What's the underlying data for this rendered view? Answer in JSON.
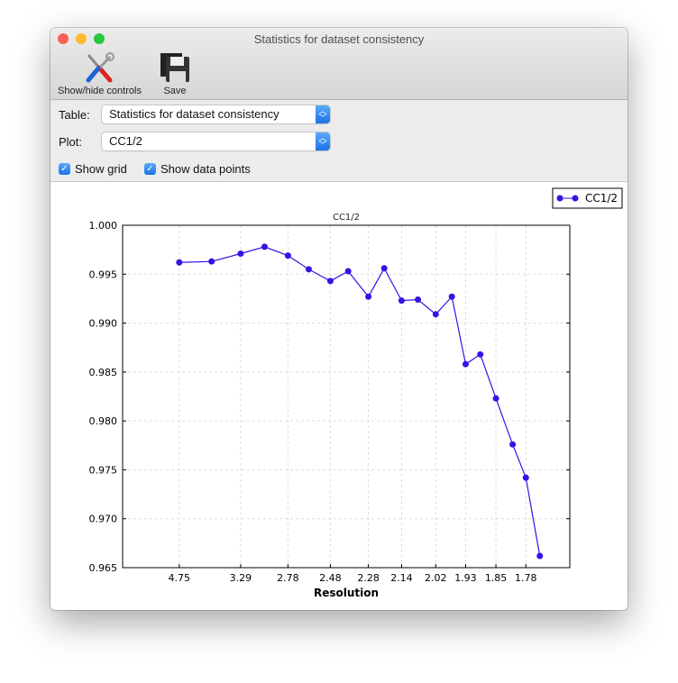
{
  "window": {
    "title": "Statistics for dataset consistency"
  },
  "toolbar": {
    "show_hide_label": "Show/hide controls",
    "save_label": "Save"
  },
  "controls": {
    "table_label": "Table:",
    "table_value": "Statistics for dataset consistency",
    "plot_label": "Plot:",
    "plot_value": "CC1/2",
    "show_grid_label": "Show grid",
    "show_grid": true,
    "show_points_label": "Show data points",
    "show_points": true
  },
  "chart_data": {
    "type": "line",
    "title": "CC1/2",
    "xlabel": "Resolution",
    "ylabel": "",
    "x_scale": "reciprocal-square (1/d^2)",
    "x_ticks": [
      "4.75",
      "3.29",
      "2.78",
      "2.48",
      "2.28",
      "2.14",
      "2.02",
      "1.93",
      "1.85",
      "1.78"
    ],
    "ylim": [
      0.965,
      1.0
    ],
    "y_ticks": [
      "0.965",
      "0.970",
      "0.975",
      "0.980",
      "0.985",
      "0.990",
      "0.995",
      "1.000"
    ],
    "grid": true,
    "legend": "top-right",
    "color": "#3a10e5",
    "series": [
      {
        "name": "CC1/2",
        "x": [
          4.75,
          3.79,
          3.29,
          3.0,
          2.78,
          2.62,
          2.48,
          2.38,
          2.28,
          2.21,
          2.14,
          2.08,
          2.02,
          1.97,
          1.93,
          1.89,
          1.85,
          1.81,
          1.78,
          1.75
        ],
        "y": [
          0.9962,
          0.9963,
          0.9971,
          0.9978,
          0.9969,
          0.9955,
          0.9943,
          0.9953,
          0.9927,
          0.9956,
          0.9923,
          0.9924,
          0.9909,
          0.9927,
          0.9858,
          0.9868,
          0.9823,
          0.9776,
          0.9742,
          0.9662
        ]
      }
    ]
  }
}
